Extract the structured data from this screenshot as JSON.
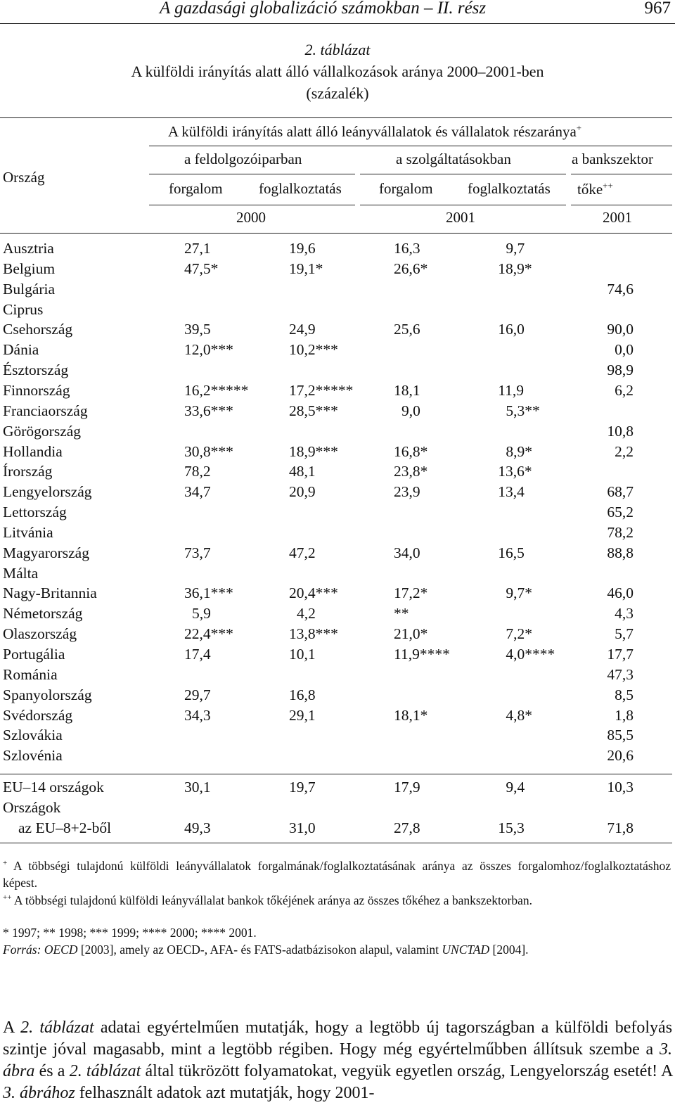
{
  "header": {
    "title": "A gazdasági globalizáció számokban – II. rész",
    "page": "967"
  },
  "caption": {
    "number": "2. táblázat",
    "title": "A külföldi irányítás alatt álló vállalkozások aránya 2000–2001-ben",
    "unit": "(százalék)"
  },
  "table": {
    "country_header": "Ország",
    "group_header": "A külföldi irányítás alatt álló leányvállalatok és vállalatok részaránya",
    "group_sup": "+",
    "sectors": [
      "a feldolgozóiparban",
      "a szolgáltatásokban",
      "a bankszektor"
    ],
    "measures": [
      "forgalom",
      "foglalkoztatás",
      "forgalom",
      "foglalkoztatás",
      "tőke"
    ],
    "tőke_sup": "++",
    "years": [
      "2000",
      "2001",
      "2001"
    ],
    "rows": [
      {
        "country": "Ausztria",
        "v": [
          "27,1",
          "19,6",
          "16,3",
          "9,7",
          ""
        ]
      },
      {
        "country": "Belgium",
        "v": [
          "47,5*",
          "19,1*",
          "26,6*",
          "18,9*",
          ""
        ]
      },
      {
        "country": "Bulgária",
        "v": [
          "",
          "",
          "",
          "",
          "74,6"
        ]
      },
      {
        "country": "Ciprus",
        "v": [
          "",
          "",
          "",
          "",
          ""
        ]
      },
      {
        "country": "Csehország",
        "v": [
          "39,5",
          "24,9",
          "25,6",
          "16,0",
          "90,0"
        ]
      },
      {
        "country": "Dánia",
        "v": [
          "12,0***",
          "10,2***",
          "",
          "",
          "0,0"
        ]
      },
      {
        "country": "Észtország",
        "v": [
          "",
          "",
          "",
          "",
          "98,9"
        ]
      },
      {
        "country": "Finnország",
        "v": [
          "16,2*****",
          "17,2*****",
          "18,1",
          "11,9",
          "6,2"
        ]
      },
      {
        "country": "Franciaország",
        "v": [
          "33,6***",
          "28,5***",
          "9,0",
          "5,3**",
          ""
        ]
      },
      {
        "country": "Görögország",
        "v": [
          "",
          "",
          "",
          "",
          "10,8"
        ]
      },
      {
        "country": "Hollandia",
        "v": [
          "30,8***",
          "18,9***",
          "16,8*",
          "8,9*",
          "2,2"
        ]
      },
      {
        "country": "Írország",
        "v": [
          "78,2",
          "48,1",
          "23,8*",
          "13,6*",
          ""
        ]
      },
      {
        "country": "Lengyelország",
        "v": [
          "34,7",
          "20,9",
          "23,9",
          "13,4",
          "68,7"
        ]
      },
      {
        "country": "Lettország",
        "v": [
          "",
          "",
          "",
          "",
          "65,2"
        ]
      },
      {
        "country": "Litvánia",
        "v": [
          "",
          "",
          "",
          "",
          "78,2"
        ]
      },
      {
        "country": "Magyarország",
        "v": [
          "73,7",
          "47,2",
          "34,0",
          "16,5",
          "88,8"
        ]
      },
      {
        "country": "Málta",
        "v": [
          "",
          "",
          "",
          "",
          ""
        ]
      },
      {
        "country": "Nagy-Britannia",
        "v": [
          "36,1***",
          "20,4***",
          "17,2*",
          "9,7*",
          "46,0"
        ]
      },
      {
        "country": "Németország",
        "v": [
          "5,9",
          "4,2",
          "**",
          "",
          "4,3"
        ]
      },
      {
        "country": "Olaszország",
        "v": [
          "22,4***",
          "13,8***",
          "21,0*",
          "7,2*",
          "5,7"
        ]
      },
      {
        "country": "Portugália",
        "v": [
          "17,4",
          "10,1",
          "11,9****",
          "4,0****",
          "17,7"
        ]
      },
      {
        "country": "Románia",
        "v": [
          "",
          "",
          "",
          "",
          "47,3"
        ]
      },
      {
        "country": "Spanyolország",
        "v": [
          "29,7",
          "16,8",
          "",
          "",
          "8,5"
        ]
      },
      {
        "country": "Svédország",
        "v": [
          "34,3",
          "29,1",
          "18,1*",
          "4,8*",
          "1,8"
        ]
      },
      {
        "country": "Szlovákia",
        "v": [
          "",
          "",
          "",
          "",
          "85,5"
        ]
      },
      {
        "country": "Szlovénia",
        "v": [
          "",
          "",
          "",
          "",
          "20,6"
        ]
      }
    ],
    "summary": [
      {
        "country": "EU–14 országok",
        "v": [
          "30,1",
          "19,7",
          "17,9",
          "9,4",
          "10,3"
        ]
      },
      {
        "country": "Országok",
        "v": [
          "",
          "",
          "",
          "",
          ""
        ]
      },
      {
        "country": "az EU–8+2-ből",
        "v": [
          "49,3",
          "31,0",
          "27,8",
          "15,3",
          "71,8"
        ]
      }
    ]
  },
  "footnotes": {
    "f1_mark": "+",
    "f1": "A többségi tulajdonú külföldi leányvállalatok forgalmának/foglalkoztatásának aránya az összes forgalomhoz/foglalkoztatáshoz képest.",
    "f2_mark": "++",
    "f2": "A többségi tulajdonú külföldi leányvállalat bankok tőkéjének aránya az összes tőkéhez a bankszektorban.",
    "f3": "* 1997; ** 1998; *** 1999; **** 2000; **** 2001.",
    "source_label": "Forrás:",
    "source_oecd": "OECD",
    "source_mid": "[2003], amely az OECD-, AFA- és FATS-adatbázisokon alapul, valamint",
    "source_unctad": "UNCTAD",
    "source_end": "[2004]."
  },
  "body": {
    "p1": "A",
    "ref1": "2. táblázat",
    "p2": "adatai egyértelműen mutatják, hogy a legtöbb új tagországban a külföldi befolyás szintje jóval magasabb, mint a legtöbb régiben. Hogy még egyértelműbben állítsuk szembe a",
    "ref2": "3. ábra",
    "p3": "és a",
    "ref3": "2. táblázat",
    "p4": "által tükrözött folyamatokat, vegyük egyetlen ország, Lengyelország esetét! A",
    "ref4": "3. ábrához",
    "p5": "felhasznált adatok azt mutatják, hogy 2001-"
  }
}
